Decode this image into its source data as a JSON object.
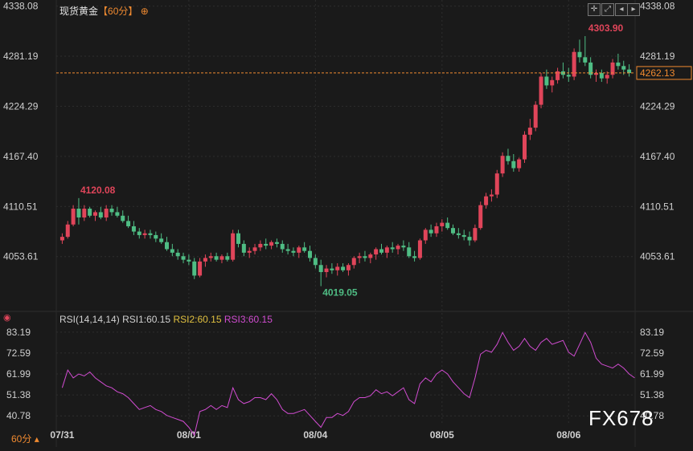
{
  "header": {
    "title": "现货黄金",
    "period_text": "【60分】",
    "add_icon": "plus-circle-icon",
    "toolbar_icons": [
      "crosshair-icon",
      "fullscreen-icon",
      "back-icon",
      "forward-icon"
    ]
  },
  "current_price": "4262.13",
  "rsi_legend": {
    "params": "RSI(14,14,14)",
    "rsi1": "RSI1:60.15",
    "rsi2": "RSI2:60.15",
    "rsi3": "RSI3:60.15"
  },
  "watermark": "FX678",
  "period_label": "60分",
  "colors": {
    "background": "#1a1a1a",
    "up": "#e0455a",
    "down": "#4fbd84",
    "rsi": "#d14cd1",
    "price_line": "#f08a30",
    "label_max": "#e0455a",
    "label_min": "#4fbd84",
    "rsi2": "#e0c040",
    "rsi3": "#d14cd1"
  },
  "chart_data": [
    {
      "type": "candlestick",
      "price_axis_ticks": [
        "4338.08",
        "4281.19",
        "4224.29",
        "4167.40",
        "4110.51",
        "4053.61"
      ],
      "ylim": [
        3995,
        4345
      ],
      "x_ticks": [
        "07/31",
        "08/01",
        "08/04",
        "08/05",
        "08/06"
      ],
      "annotations": {
        "max": "4303.90",
        "min": "4019.05",
        "left_high": "4120.08"
      },
      "candles": [
        [
          4072,
          4080,
          4068,
          4076
        ],
        [
          4076,
          4094,
          4074,
          4090
        ],
        [
          4090,
          4112,
          4088,
          4108
        ],
        [
          4108,
          4120,
          4090,
          4098
        ],
        [
          4098,
          4112,
          4094,
          4108
        ],
        [
          4108,
          4110,
          4098,
          4100
        ],
        [
          4100,
          4106,
          4094,
          4104
        ],
        [
          4104,
          4110,
          4096,
          4098
        ],
        [
          4098,
          4112,
          4094,
          4108
        ],
        [
          4108,
          4112,
          4100,
          4104
        ],
        [
          4104,
          4110,
          4098,
          4100
        ],
        [
          4100,
          4106,
          4092,
          4094
        ],
        [
          4094,
          4100,
          4086,
          4088
        ],
        [
          4088,
          4094,
          4078,
          4082
        ],
        [
          4082,
          4086,
          4074,
          4078
        ],
        [
          4078,
          4084,
          4074,
          4080
        ],
        [
          4080,
          4084,
          4074,
          4078
        ],
        [
          4078,
          4082,
          4070,
          4074
        ],
        [
          4074,
          4080,
          4068,
          4070
        ],
        [
          4070,
          4076,
          4060,
          4062
        ],
        [
          4062,
          4068,
          4054,
          4058
        ],
        [
          4058,
          4062,
          4050,
          4054
        ],
        [
          4054,
          4058,
          4046,
          4050
        ],
        [
          4050,
          4056,
          4044,
          4048
        ],
        [
          4048,
          4052,
          4028,
          4032
        ],
        [
          4032,
          4052,
          4030,
          4048
        ],
        [
          4048,
          4056,
          4042,
          4052
        ],
        [
          4052,
          4058,
          4048,
          4054
        ],
        [
          4054,
          4058,
          4048,
          4050
        ],
        [
          4050,
          4056,
          4046,
          4054
        ],
        [
          4054,
          4058,
          4048,
          4050
        ],
        [
          4050,
          4084,
          4048,
          4080
        ],
        [
          4080,
          4084,
          4064,
          4068
        ],
        [
          4068,
          4072,
          4054,
          4058
        ],
        [
          4058,
          4064,
          4052,
          4060
        ],
        [
          4060,
          4068,
          4056,
          4064
        ],
        [
          4064,
          4072,
          4060,
          4068
        ],
        [
          4068,
          4074,
          4062,
          4066
        ],
        [
          4066,
          4072,
          4062,
          4070
        ],
        [
          4070,
          4074,
          4064,
          4068
        ],
        [
          4068,
          4072,
          4058,
          4062
        ],
        [
          4062,
          4068,
          4056,
          4060
        ],
        [
          4060,
          4064,
          4054,
          4058
        ],
        [
          4058,
          4066,
          4052,
          4064
        ],
        [
          4064,
          4070,
          4058,
          4060
        ],
        [
          4060,
          4066,
          4048,
          4052
        ],
        [
          4052,
          4056,
          4040,
          4044
        ],
        [
          4044,
          4050,
          4020,
          4036
        ],
        [
          4036,
          4044,
          4030,
          4040
        ],
        [
          4040,
          4046,
          4034,
          4038
        ],
        [
          4038,
          4046,
          4032,
          4042
        ],
        [
          4042,
          4046,
          4036,
          4038
        ],
        [
          4038,
          4046,
          4032,
          4044
        ],
        [
          4044,
          4054,
          4040,
          4052
        ],
        [
          4052,
          4058,
          4046,
          4054
        ],
        [
          4054,
          4060,
          4048,
          4052
        ],
        [
          4052,
          4058,
          4046,
          4056
        ],
        [
          4056,
          4064,
          4050,
          4062
        ],
        [
          4062,
          4068,
          4056,
          4058
        ],
        [
          4058,
          4066,
          4052,
          4064
        ],
        [
          4064,
          4070,
          4058,
          4062
        ],
        [
          4062,
          4068,
          4056,
          4066
        ],
        [
          4066,
          4072,
          4060,
          4064
        ],
        [
          4064,
          4070,
          4052,
          4054
        ],
        [
          4054,
          4060,
          4048,
          4052
        ],
        [
          4052,
          4074,
          4050,
          4072
        ],
        [
          4072,
          4086,
          4068,
          4084
        ],
        [
          4084,
          4090,
          4076,
          4080
        ],
        [
          4080,
          4092,
          4076,
          4088
        ],
        [
          4088,
          4096,
          4082,
          4092
        ],
        [
          4092,
          4098,
          4084,
          4086
        ],
        [
          4086,
          4090,
          4078,
          4080
        ],
        [
          4080,
          4086,
          4074,
          4078
        ],
        [
          4078,
          4084,
          4072,
          4076
        ],
        [
          4076,
          4082,
          4066,
          4072
        ],
        [
          4072,
          4090,
          4070,
          4086
        ],
        [
          4086,
          4116,
          4084,
          4112
        ],
        [
          4112,
          4126,
          4108,
          4122
        ],
        [
          4122,
          4130,
          4116,
          4124
        ],
        [
          4124,
          4152,
          4120,
          4148
        ],
        [
          4148,
          4172,
          4144,
          4168
        ],
        [
          4168,
          4176,
          4158,
          4162
        ],
        [
          4162,
          4170,
          4150,
          4154
        ],
        [
          4154,
          4166,
          4150,
          4164
        ],
        [
          4164,
          4196,
          4160,
          4192
        ],
        [
          4192,
          4210,
          4186,
          4200
        ],
        [
          4200,
          4230,
          4196,
          4226
        ],
        [
          4226,
          4262,
          4222,
          4258
        ],
        [
          4258,
          4266,
          4244,
          4248
        ],
        [
          4248,
          4258,
          4240,
          4254
        ],
        [
          4254,
          4268,
          4250,
          4264
        ],
        [
          4264,
          4274,
          4256,
          4260
        ],
        [
          4260,
          4268,
          4252,
          4258
        ],
        [
          4258,
          4290,
          4254,
          4286
        ],
        [
          4286,
          4300,
          4274,
          4280
        ],
        [
          4280,
          4304,
          4270,
          4274
        ],
        [
          4274,
          4280,
          4256,
          4260
        ],
        [
          4260,
          4266,
          4252,
          4262
        ],
        [
          4262,
          4266,
          4252,
          4256
        ],
        [
          4256,
          4264,
          4250,
          4260
        ],
        [
          4260,
          4278,
          4256,
          4274
        ],
        [
          4274,
          4284,
          4266,
          4270
        ],
        [
          4270,
          4276,
          4260,
          4266
        ],
        [
          4266,
          4272,
          4258,
          4262
        ]
      ]
    },
    {
      "type": "line",
      "name": "RSI",
      "y_ticks": [
        "83.19",
        "72.59",
        "61.99",
        "51.38",
        "40.78"
      ],
      "ylim": [
        36,
        88
      ],
      "values": [
        55,
        64,
        60,
        62,
        61,
        63,
        60,
        58,
        56,
        55,
        53,
        52,
        50,
        47,
        44,
        45,
        46,
        44,
        43,
        41,
        40,
        39,
        38,
        35,
        31,
        43,
        44,
        46,
        44,
        46,
        45,
        55,
        49,
        47,
        48,
        50,
        50,
        49,
        52,
        49,
        44,
        42,
        42,
        43,
        44,
        41,
        38,
        35,
        40,
        40,
        42,
        41,
        43,
        48,
        50,
        50,
        51,
        54,
        52,
        53,
        51,
        53,
        55,
        49,
        47,
        57,
        60,
        58,
        62,
        64,
        62,
        58,
        55,
        52,
        50,
        60,
        72,
        74,
        73,
        77,
        83,
        78,
        74,
        76,
        80,
        76,
        74,
        78,
        80,
        77,
        78,
        79,
        73,
        71,
        77,
        83,
        78,
        70,
        67,
        66,
        65,
        67,
        65,
        62,
        60
      ]
    }
  ]
}
